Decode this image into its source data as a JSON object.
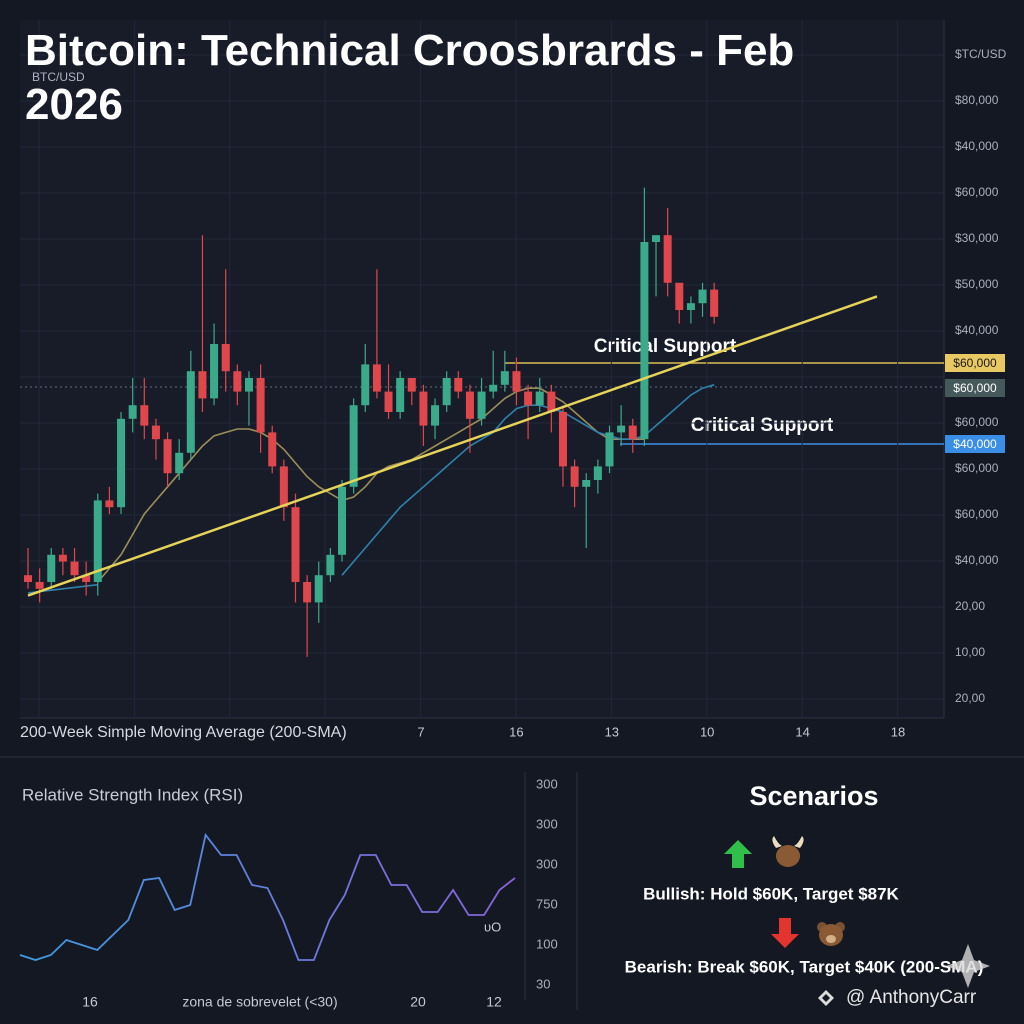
{
  "chart_data": [
    {
      "type": "candlestick",
      "title": "Bitcoin: Technical Croosbrards - Feb 2026",
      "subtitle": "BTC/USD",
      "x_label": "200-Week Simple Moving Average (200-SMA)",
      "ylim": [
        0,
        100000
      ],
      "y_axis_labels": [
        "$TC/USD",
        "$80,000",
        "$40,000",
        "$60,000",
        "$30,000",
        "$50,000",
        "$40,000",
        "$60,000",
        "$60,000",
        "$60,000",
        "$40,000",
        "20,00",
        "10,00",
        "20,00"
      ],
      "x_labels": [
        "7",
        "16",
        "13",
        "10",
        "14",
        "18"
      ],
      "up_color": "#3aaa8a",
      "down_color": "#e0474c",
      "open": [
        21000,
        20000,
        20000,
        24000,
        23000,
        21000,
        20000,
        32000,
        31000,
        44000,
        46000,
        43000,
        41000,
        36000,
        39000,
        51000,
        47000,
        55000,
        51000,
        48000,
        50000,
        42000,
        37000,
        31000,
        20000,
        17000,
        21000,
        24000,
        34000,
        46000,
        52000,
        48000,
        45000,
        50000,
        48000,
        43000,
        46000,
        50000,
        48000,
        44000,
        48000,
        49000,
        51000,
        48000,
        46000,
        48000,
        45000,
        37000,
        34000,
        35000,
        37000,
        42000,
        43000,
        41000,
        70000,
        71000,
        64000,
        60000,
        61000,
        63000
      ],
      "high": [
        25000,
        22000,
        25000,
        25000,
        25000,
        23000,
        33000,
        34000,
        45000,
        50000,
        50000,
        44000,
        42000,
        41000,
        54000,
        71000,
        58000,
        66000,
        52000,
        51000,
        52000,
        43000,
        38000,
        33000,
        21000,
        23000,
        25000,
        35000,
        47000,
        55000,
        66000,
        52000,
        51000,
        49000,
        49000,
        47000,
        51000,
        51000,
        49000,
        50000,
        54000,
        54000,
        53000,
        49000,
        50000,
        49000,
        46000,
        38000,
        36000,
        38000,
        43000,
        46000,
        44000,
        78000,
        71000,
        75000,
        64000,
        62000,
        64000,
        64000
      ],
      "low": [
        19000,
        17000,
        19000,
        21000,
        20000,
        18000,
        18000,
        30000,
        30000,
        42000,
        41000,
        38000,
        34000,
        35000,
        38000,
        45000,
        46000,
        48000,
        46000,
        43000,
        39000,
        36000,
        29000,
        17000,
        9000,
        14000,
        20000,
        23000,
        33000,
        45000,
        47000,
        44000,
        44000,
        46000,
        40000,
        41000,
        45000,
        47000,
        39000,
        43000,
        47000,
        48000,
        46000,
        41000,
        45000,
        42000,
        34000,
        31000,
        25000,
        33000,
        36000,
        40000,
        39000,
        40000,
        62000,
        62000,
        58000,
        58000,
        59000,
        58000
      ],
      "close": [
        20000,
        19000,
        24000,
        23000,
        21000,
        20000,
        32000,
        31000,
        44000,
        46000,
        43000,
        41000,
        36000,
        39000,
        51000,
        47000,
        55000,
        51000,
        48000,
        50000,
        42000,
        37000,
        31000,
        20000,
        17000,
        21000,
        24000,
        34000,
        46000,
        52000,
        48000,
        45000,
        50000,
        48000,
        43000,
        46000,
        50000,
        48000,
        44000,
        48000,
        49000,
        51000,
        48000,
        46000,
        48000,
        45000,
        37000,
        34000,
        35000,
        37000,
        42000,
        43000,
        41000,
        70000,
        71000,
        64000,
        60000,
        61000,
        63000,
        59000
      ],
      "moving_averages": [
        {
          "color": "#9c8e58",
          "values": [
            null,
            null,
            null,
            null,
            null,
            null,
            20000,
            22000,
            24000,
            27000,
            30000,
            32000,
            34000,
            36000,
            38000,
            40000,
            41500,
            42000,
            42500,
            42500,
            42000,
            41000,
            39500,
            37500,
            35500,
            34000,
            33000,
            32000,
            32500,
            34000,
            36000,
            37000,
            37500,
            38000,
            39000,
            40000,
            41000,
            42000,
            43000,
            44000,
            45500,
            47000,
            48000,
            48500,
            48500,
            47500,
            46500,
            45000,
            43500,
            42000,
            41000,
            41000,
            41000,
            41000,
            null,
            null,
            null,
            null,
            null,
            null
          ]
        },
        {
          "color": "#2f82ad",
          "values": [
            18400,
            18600,
            18800,
            19000,
            19200,
            19400,
            19600,
            null,
            null,
            null,
            null,
            null,
            null,
            null,
            null,
            null,
            null,
            null,
            null,
            null,
            null,
            null,
            null,
            null,
            null,
            null,
            null,
            21000,
            23000,
            25000,
            27000,
            29000,
            31000,
            32500,
            34000,
            35500,
            37000,
            38500,
            40000,
            41000,
            42000,
            44000,
            45500,
            46000,
            46000,
            45500,
            45000,
            44000,
            43000,
            42000,
            41500,
            41000,
            41000,
            41500,
            43000,
            44500,
            46000,
            47500,
            48500,
            49000
          ]
        }
      ],
      "trendline": {
        "color": "#e6d35a",
        "x": [
          0,
          73
        ],
        "values": [
          18000,
          62000
        ]
      },
      "annotations": [
        "Critical Support",
        "Critical Support"
      ],
      "price_badges": [
        {
          "label": "$60,000",
          "color": "#e8c862"
        },
        {
          "label": "$60,000",
          "color": "#46595a"
        },
        {
          "label": "$40,000",
          "color": "#3a8ee6"
        }
      ]
    },
    {
      "type": "line",
      "title": "Relative Strength Index (RSI)",
      "ylim": [
        0,
        100
      ],
      "y_axis_labels": [
        "300",
        "300",
        "300",
        "750",
        "100",
        "30"
      ],
      "x_labels": [
        "16",
        "zona de sobrevelet (<30)",
        "20",
        "12"
      ],
      "colors": [
        "#3f9be0",
        "#8a62d8"
      ],
      "values": [
        15,
        12.5,
        15,
        22.5,
        20,
        17.5,
        25,
        32.5,
        52.5,
        53.5,
        37.5,
        40,
        75,
        65,
        65,
        50,
        48.5,
        32.5,
        12.5,
        12.5,
        32.5,
        45,
        65,
        65,
        50,
        50,
        36.5,
        36.5,
        47.5,
        35,
        35,
        47.5,
        53.5
      ],
      "annotation": "υO"
    }
  ],
  "scenarios": {
    "title": "Scenarios",
    "bullish": "Bullish: Hold $60K, Target $87K",
    "bearish": "Bearish: Break $60K, Target $40K (200-SMA)"
  },
  "watermark": "@ AnthonyCarr"
}
